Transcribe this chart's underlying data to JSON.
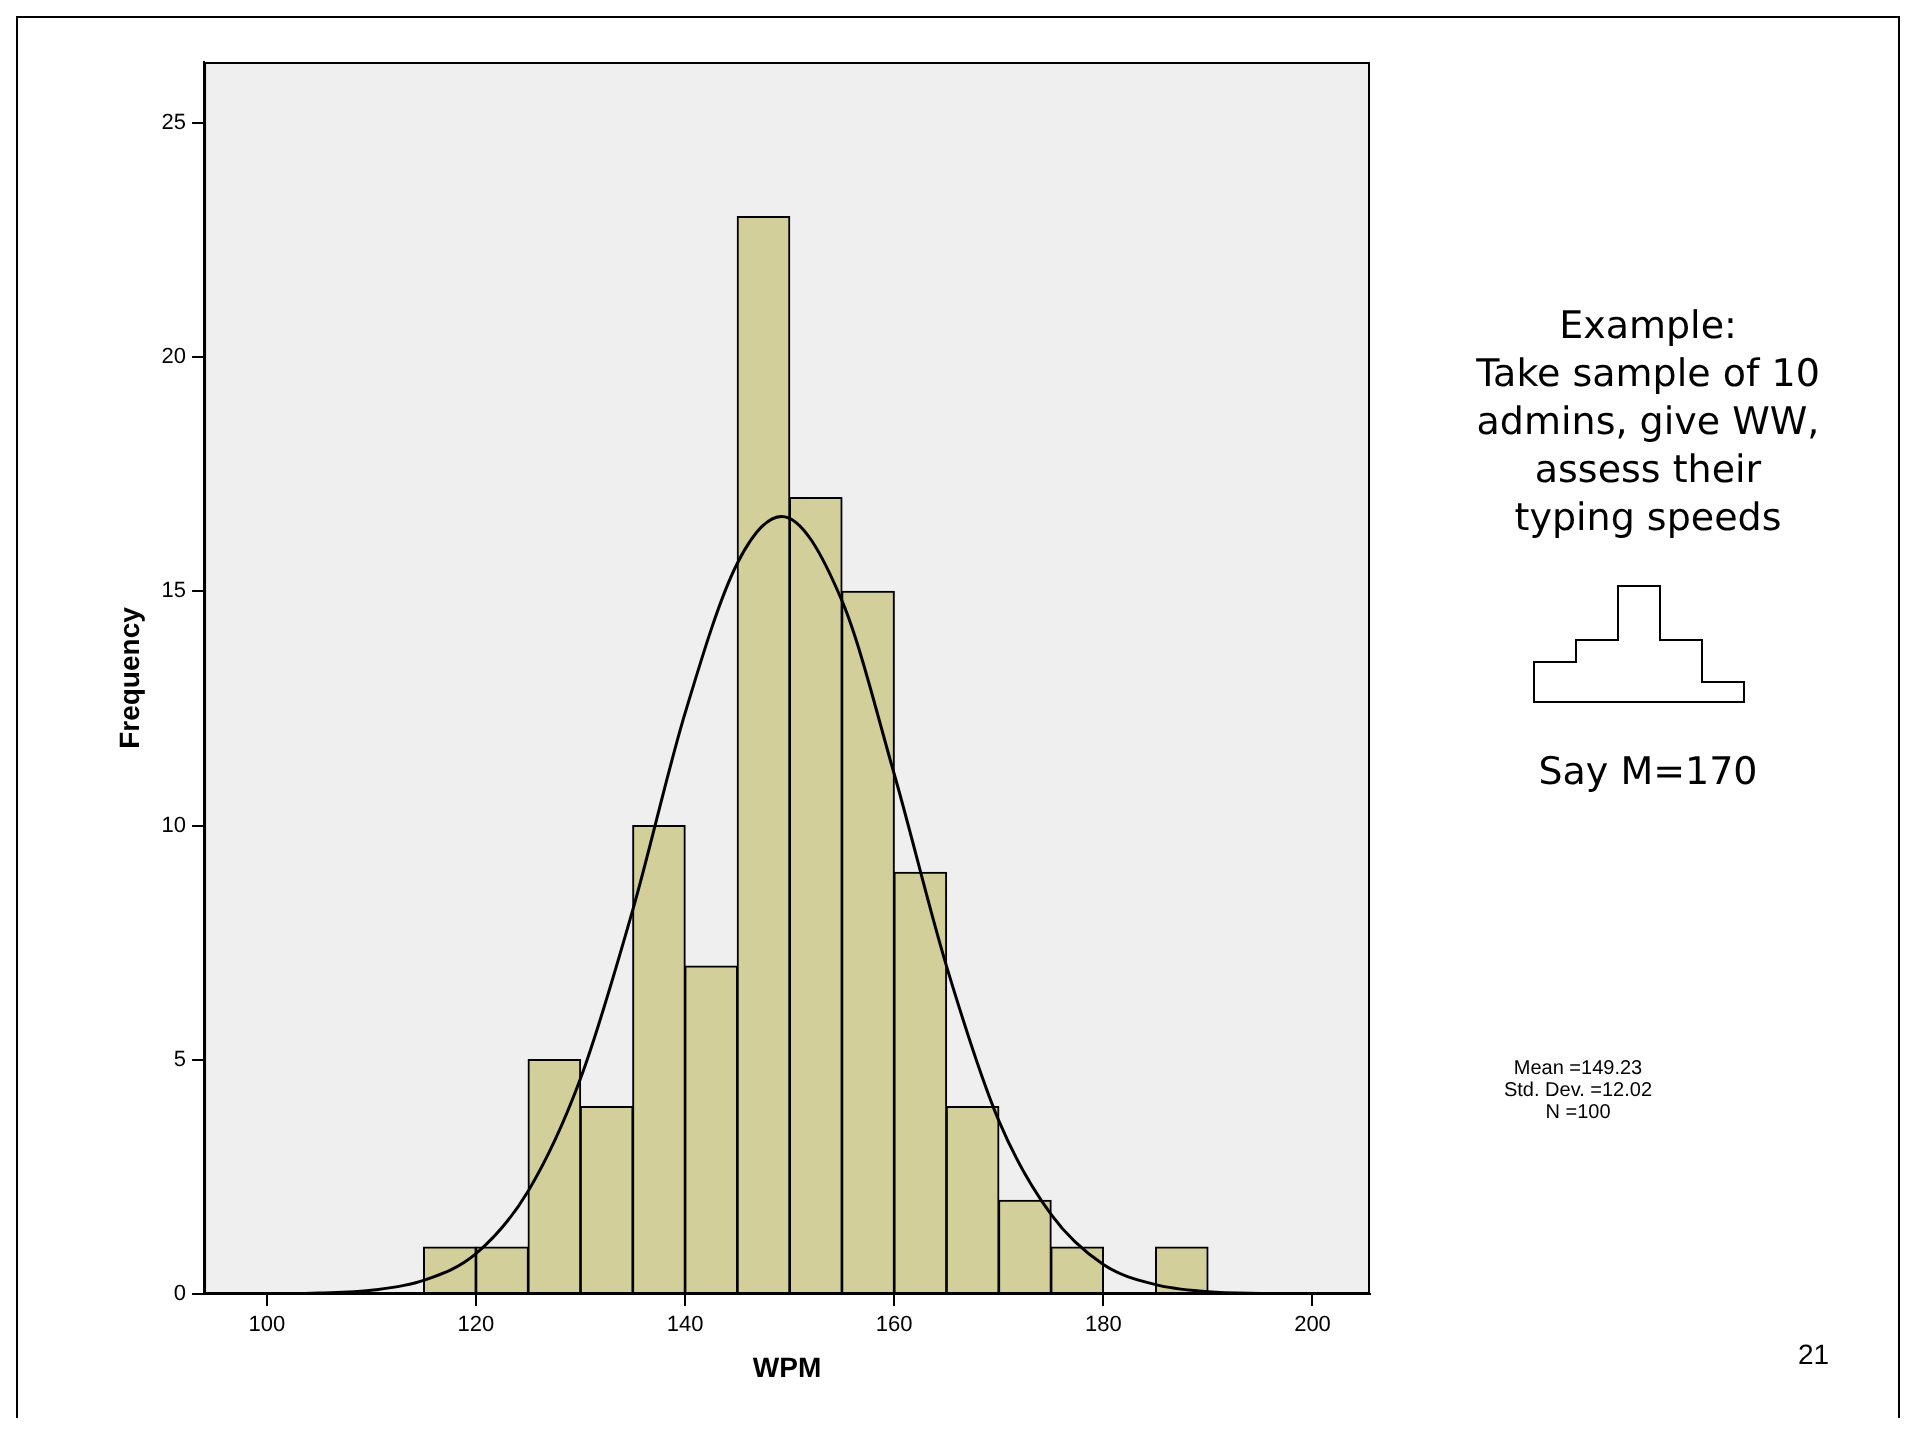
{
  "chart_data": {
    "type": "histogram",
    "xlabel": "WPM",
    "ylabel": "Frequency",
    "bins": [
      115,
      120,
      125,
      130,
      135,
      140,
      145,
      150,
      155,
      160,
      165,
      170,
      175,
      180,
      185,
      190
    ],
    "values": [
      1,
      1,
      5,
      4,
      10,
      7,
      23,
      17,
      15,
      9,
      4,
      2,
      1,
      0,
      1
    ],
    "color": "#d3cf9b",
    "series": [
      {
        "type": "line",
        "color": "#000000",
        "x": [
          100,
          105,
          110,
          115,
          120,
          125,
          130,
          135,
          140,
          145,
          149.23,
          155,
          160,
          165,
          170,
          175,
          180,
          185,
          190,
          195,
          200
        ],
        "values": [
          0,
          0.02,
          0.08,
          0.29,
          0.86,
          2.2,
          4.6,
          8.2,
          12.4,
          15.6,
          16.6,
          14.8,
          11.1,
          7.0,
          3.7,
          1.7,
          0.63,
          0.2,
          0.05,
          0.01,
          0
        ]
      }
    ],
    "marker": "none",
    "grid": false,
    "legend": false,
    "xlim": [
      94,
      205.5
    ],
    "xticks": [
      100,
      120,
      140,
      160,
      180,
      200
    ],
    "ylim": [
      0,
      26.3
    ],
    "yticks": [
      0,
      5,
      10,
      15,
      20,
      25
    ],
    "annotations": [
      "Example:\nTake sample of 10\nadmins, give WW,\nassess their\ntyping speeds",
      "Say M=170",
      "Mean =149.23\nStd. Dev. =12.02\nN =100",
      "21"
    ]
  }
}
